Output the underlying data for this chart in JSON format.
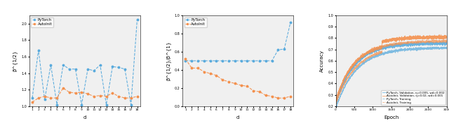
{
  "plot1": {
    "xlabel": "d",
    "ylabel": "β^{1/2}",
    "xlim": [
      0.5,
      18.5
    ],
    "ylim": [
      1.0,
      2.1
    ],
    "yticks": [
      1.0,
      1.2,
      1.4,
      1.6,
      1.8,
      2.0
    ],
    "xticks": [
      1,
      2,
      3,
      4,
      5,
      6,
      7,
      8,
      9,
      10,
      11,
      12,
      13,
      14,
      15,
      16,
      17,
      18
    ],
    "pytorch_y": [
      1.1,
      1.68,
      1.08,
      1.5,
      1.02,
      1.5,
      1.45,
      1.45,
      1.02,
      1.45,
      1.43,
      1.5,
      1.02,
      1.48,
      1.47,
      1.45,
      1.02,
      2.05
    ],
    "autoinit_y": [
      1.05,
      1.1,
      1.12,
      1.1,
      1.1,
      1.22,
      1.17,
      1.16,
      1.17,
      1.15,
      1.12,
      1.13,
      1.12,
      1.16,
      1.12,
      1.1,
      1.1,
      1.12
    ],
    "pytorch_color": "#5aabdd",
    "autoinit_color": "#f4914e",
    "legend": [
      "PyTorch",
      "AutoInit"
    ]
  },
  "plot2": {
    "xlabel": "d",
    "ylabel": "β^{1/2}/β^{1}",
    "xlim": [
      0.5,
      18.5
    ],
    "ylim": [
      0.0,
      1.0
    ],
    "yticks": [
      0.0,
      0.2,
      0.4,
      0.6,
      0.8,
      1.0
    ],
    "xticks": [
      1,
      2,
      3,
      4,
      5,
      6,
      7,
      8,
      9,
      10,
      11,
      12,
      13,
      14,
      15,
      16,
      17,
      18
    ],
    "pytorch_y": [
      0.5,
      0.5,
      0.5,
      0.5,
      0.5,
      0.5,
      0.5,
      0.5,
      0.5,
      0.5,
      0.5,
      0.5,
      0.5,
      0.5,
      0.5,
      0.62,
      0.63,
      0.92
    ],
    "autoinit_y": [
      0.52,
      0.42,
      0.42,
      0.38,
      0.36,
      0.34,
      0.29,
      0.27,
      0.25,
      0.23,
      0.22,
      0.17,
      0.16,
      0.12,
      0.11,
      0.09,
      0.09,
      0.11
    ],
    "pytorch_color": "#5aabdd",
    "autoinit_color": "#f4914e",
    "legend": [
      "PyTorch",
      "AutoInit"
    ]
  },
  "plot3": {
    "xlabel": "Epoch",
    "ylabel": "Accuracy",
    "xlim": [
      0,
      3000
    ],
    "ylim": [
      0.2,
      1.0
    ],
    "yticks": [
      0.2,
      0.3,
      0.4,
      0.5,
      0.6,
      0.7,
      0.8,
      0.9,
      1.0
    ],
    "xticks": [
      0,
      500,
      1000,
      1500,
      2000,
      2500,
      3000
    ],
    "pytorch_color": "#5aabdd",
    "autoinit_color": "#f4914e",
    "legend": [
      "PyTorch, Validation, η=0.005, wd=0.002",
      "AutoInit, Validation, η=0.02, wd=0.001",
      "PyTorch, Training",
      "AutoInit, Training"
    ],
    "pytorch_val_end": 0.755,
    "autoinit_val_end": 0.81,
    "autoinit_jump_epoch": 1250,
    "autoinit_jump_size": 0.045,
    "pytorch_train_end": 0.715,
    "autoinit_train_end": 0.775
  }
}
